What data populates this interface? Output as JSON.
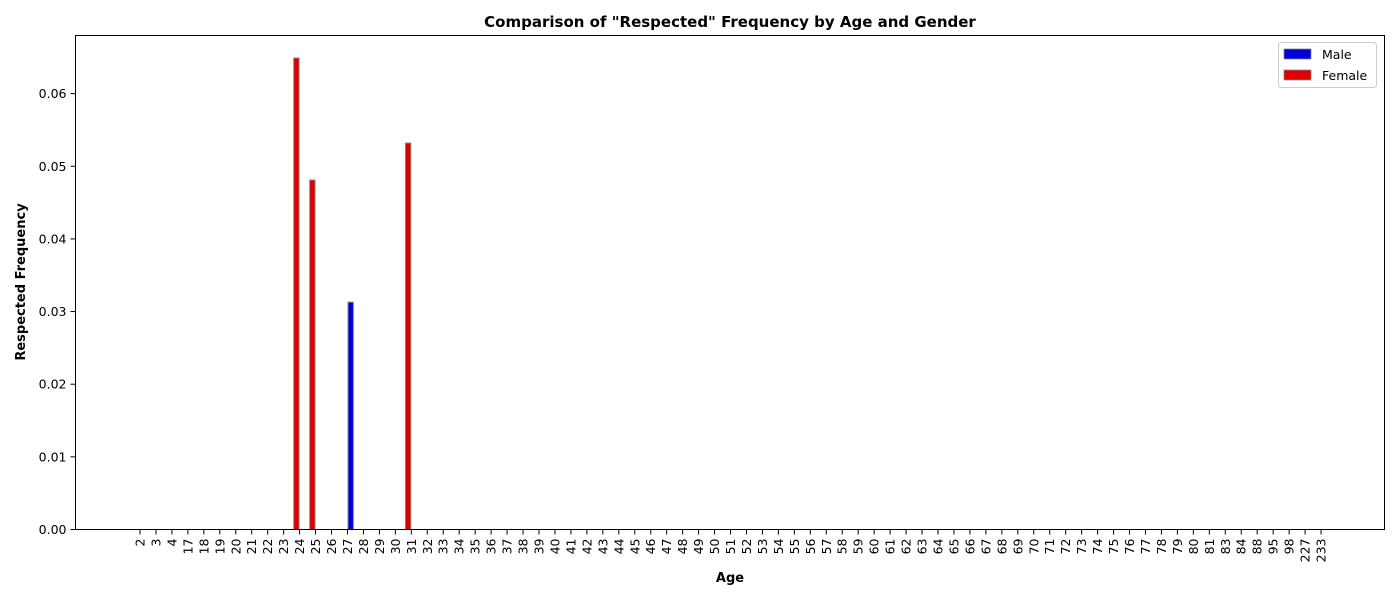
{
  "chart_data": {
    "type": "bar",
    "title": "Comparison of \"Respected\" Frequency by Age and Gender",
    "xlabel": "Age",
    "ylabel": "Respected Frequency",
    "categories": [
      "2",
      "3",
      "4",
      "17",
      "18",
      "19",
      "20",
      "21",
      "22",
      "23",
      "24",
      "25",
      "26",
      "27",
      "28",
      "29",
      "30",
      "31",
      "32",
      "33",
      "34",
      "35",
      "36",
      "37",
      "38",
      "39",
      "40",
      "41",
      "42",
      "43",
      "44",
      "45",
      "46",
      "47",
      "48",
      "49",
      "50",
      "51",
      "52",
      "53",
      "54",
      "55",
      "56",
      "57",
      "58",
      "59",
      "60",
      "61",
      "62",
      "63",
      "64",
      "65",
      "66",
      "67",
      "68",
      "69",
      "70",
      "71",
      "72",
      "73",
      "74",
      "75",
      "76",
      "77",
      "78",
      "79",
      "80",
      "81",
      "83",
      "84",
      "88",
      "95",
      "98",
      "227",
      "233"
    ],
    "series": [
      {
        "name": "Male",
        "color": "#0000dd",
        "values": [
          0,
          0,
          0,
          0,
          0,
          0,
          0,
          0,
          0,
          0,
          0,
          0,
          0,
          0.0313,
          0,
          0,
          0,
          0,
          0,
          0,
          0,
          0,
          0,
          0,
          0,
          0,
          0,
          0,
          0,
          0,
          0,
          0,
          0,
          0,
          0,
          0,
          0,
          0,
          0,
          0,
          0,
          0,
          0,
          0,
          0,
          0,
          0,
          0,
          0,
          0,
          0,
          0,
          0,
          0,
          0,
          0,
          0,
          0,
          0,
          0,
          0,
          0,
          0,
          0,
          0,
          0,
          0,
          0,
          0,
          0,
          0,
          0,
          0,
          0,
          0
        ]
      },
      {
        "name": "Female",
        "color": "#dd0000",
        "values": [
          0,
          0,
          0,
          0,
          0,
          0,
          0,
          0,
          0,
          0,
          0.0649,
          0.0481,
          0,
          0,
          0,
          0,
          0,
          0.0532,
          0,
          0,
          0,
          0,
          0,
          0,
          0,
          0,
          0,
          0,
          0,
          0,
          0,
          0,
          0,
          0,
          0,
          0,
          0,
          0,
          0,
          0,
          0,
          0,
          0,
          0,
          0,
          0,
          0,
          0,
          0,
          0,
          0,
          0,
          0,
          0,
          0,
          0,
          0,
          0,
          0,
          0,
          0,
          0,
          0,
          0,
          0,
          0,
          0,
          0,
          0,
          0,
          0,
          0,
          0,
          0,
          0
        ]
      }
    ],
    "ylim": [
      0,
      0.068
    ],
    "yticks": [
      "0.00",
      "0.01",
      "0.02",
      "0.03",
      "0.04",
      "0.05",
      "0.06"
    ],
    "legend": "top-right",
    "grid": false
  }
}
